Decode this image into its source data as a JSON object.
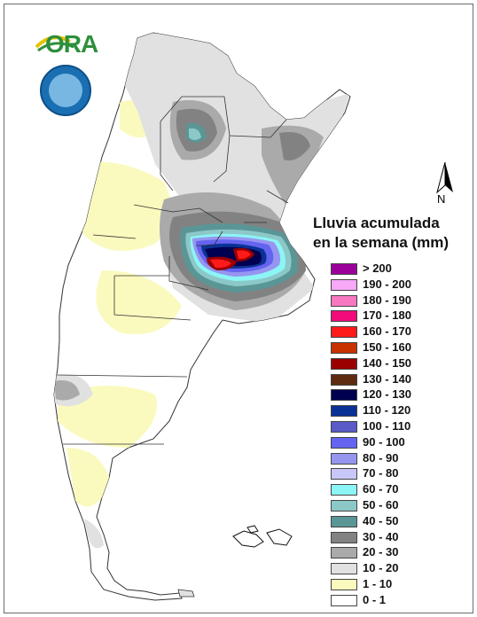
{
  "legend": {
    "title_line1": "Lluvia acumulada",
    "title_line2": "en la semana (mm)",
    "items": [
      {
        "label": "> 200",
        "color": "#9c009c"
      },
      {
        "label": "190 - 200",
        "color": "#f7a8f7"
      },
      {
        "label": "180 - 190",
        "color": "#f778c0"
      },
      {
        "label": "170 - 180",
        "color": "#f00c7a"
      },
      {
        "label": "160 - 170",
        "color": "#ff1a1a"
      },
      {
        "label": "150 - 160",
        "color": "#c83200"
      },
      {
        "label": "140 - 150",
        "color": "#9a0000"
      },
      {
        "label": "130 - 140",
        "color": "#5e2a10"
      },
      {
        "label": "120 - 130",
        "color": "#000050"
      },
      {
        "label": "110 - 120",
        "color": "#0a3296"
      },
      {
        "label": "100 - 110",
        "color": "#5a5ac8"
      },
      {
        "label": "90 - 100",
        "color": "#6464f0"
      },
      {
        "label": "80 - 90",
        "color": "#9696f0"
      },
      {
        "label": "70 - 80",
        "color": "#c8c8f8"
      },
      {
        "label": "60 - 70",
        "color": "#8cf5f5"
      },
      {
        "label": "50 - 60",
        "color": "#8cc8c8"
      },
      {
        "label": "40 - 50",
        "color": "#5a9696"
      },
      {
        "label": "30 - 40",
        "color": "#828282"
      },
      {
        "label": "20 - 30",
        "color": "#aaaaaa"
      },
      {
        "label": "10 - 20",
        "color": "#e1e1e1"
      },
      {
        "label": "1 - 10",
        "color": "#fafabe"
      },
      {
        "label": "0 - 1",
        "color": "#ffffff"
      }
    ]
  },
  "logo": {
    "text": "ORA"
  },
  "north_arrow": {
    "label": "N"
  }
}
